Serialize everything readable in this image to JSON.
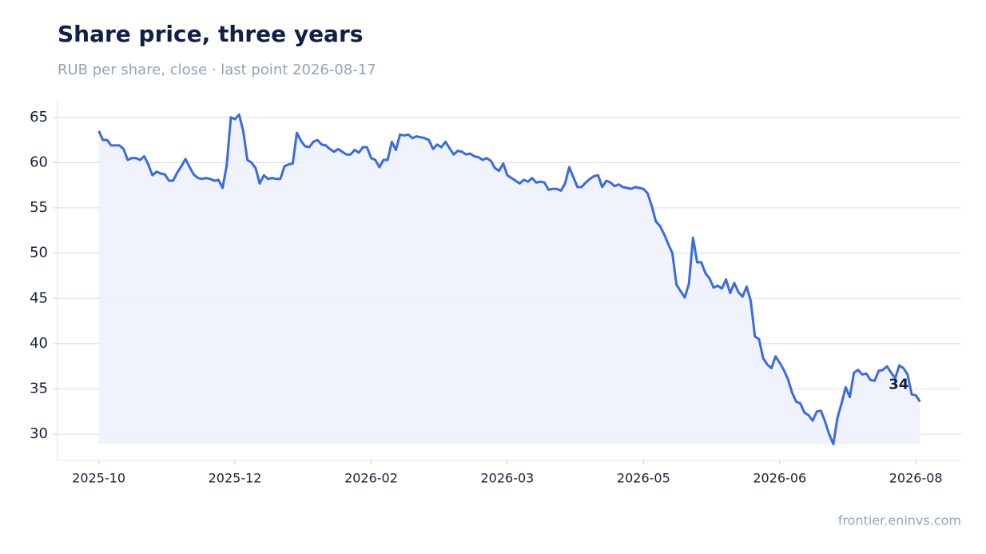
{
  "chart_data": {
    "type": "line",
    "title": "Share price, three years",
    "subtitle": "RUB per share, close · last point 2026-08-17",
    "source": "frontier.eninvs.com",
    "color": "#3b6be0",
    "fill": "#eef2fc",
    "grid": true,
    "values": [
      63.5,
      62.5,
      62.5,
      61.9,
      61.9,
      61.9,
      61.5,
      60.3,
      60.5,
      60.5,
      60.3,
      60.7,
      59.8,
      58.6,
      59.0,
      58.8,
      58.7,
      58.0,
      58.0,
      58.9,
      59.6,
      60.4,
      59.5,
      58.7,
      58.3,
      58.2,
      58.3,
      58.2,
      58.0,
      58.1,
      57.2,
      59.7,
      65.0,
      64.8,
      65.3,
      63.5,
      60.3,
      60.0,
      59.4,
      57.7,
      58.6,
      58.2,
      58.3,
      58.2,
      58.2,
      59.6,
      59.8,
      59.9,
      63.3,
      62.4,
      61.8,
      61.7,
      62.3,
      62.5,
      62.0,
      61.9,
      61.5,
      61.2,
      61.5,
      61.2,
      60.9,
      60.9,
      61.4,
      61.1,
      61.7,
      61.7,
      60.5,
      60.3,
      59.5,
      60.3,
      60.3,
      62.3,
      61.4,
      63.1,
      63.0,
      63.1,
      62.7,
      62.9,
      62.8,
      62.7,
      62.5,
      61.5,
      62.0,
      61.7,
      62.3,
      61.6,
      60.9,
      61.3,
      61.2,
      60.9,
      61.0,
      60.7,
      60.6,
      60.3,
      60.5,
      60.2,
      59.4,
      59.1,
      59.9,
      58.6,
      58.3,
      58.0,
      57.7,
      58.1,
      57.9,
      58.3,
      57.8,
      57.9,
      57.8,
      57.0,
      57.1,
      57.1,
      56.9,
      57.7,
      59.5,
      58.4,
      57.3,
      57.3,
      57.8,
      58.2,
      58.5,
      58.6,
      57.3,
      58.0,
      57.8,
      57.4,
      57.6,
      57.3,
      57.2,
      57.1,
      57.3,
      57.2,
      57.1,
      56.6,
      55.2,
      53.5,
      53.0,
      52.1,
      51.0,
      50.0,
      46.5,
      45.8,
      45.1,
      46.6,
      51.7,
      49.0,
      49.0,
      47.8,
      47.2,
      46.2,
      46.4,
      46.1,
      47.1,
      45.6,
      46.7,
      45.7,
      45.2,
      46.3,
      44.7,
      40.8,
      40.5,
      38.4,
      37.7,
      37.3,
      38.6,
      37.9,
      37.1,
      36.1,
      34.6,
      33.6,
      33.4,
      32.4,
      32.1,
      31.5,
      32.5,
      32.6,
      31.4,
      30.0,
      28.9,
      31.8,
      33.4,
      35.2,
      34.1,
      36.8,
      37.1,
      36.6,
      36.7,
      36.0,
      35.9,
      37.0,
      37.1,
      37.5,
      36.8,
      36.2,
      37.6,
      37.3,
      36.6,
      34.4,
      34.3,
      33.6
    ],
    "end_label": "34",
    "xlim": [
      -10,
      209
    ],
    "xticks": [
      {
        "value": 0,
        "label": "2025-10"
      },
      {
        "value": 33,
        "label": "2025-12"
      },
      {
        "value": 66,
        "label": "2026-02"
      },
      {
        "value": 99,
        "label": "2026-03"
      },
      {
        "value": 132,
        "label": "2026-05"
      },
      {
        "value": 165,
        "label": "2026-06"
      },
      {
        "value": 198,
        "label": "2026-08"
      }
    ],
    "ylim": [
      27.1,
      67.1
    ],
    "yticks": [
      30,
      35,
      40,
      45,
      50,
      55,
      60,
      65
    ]
  }
}
